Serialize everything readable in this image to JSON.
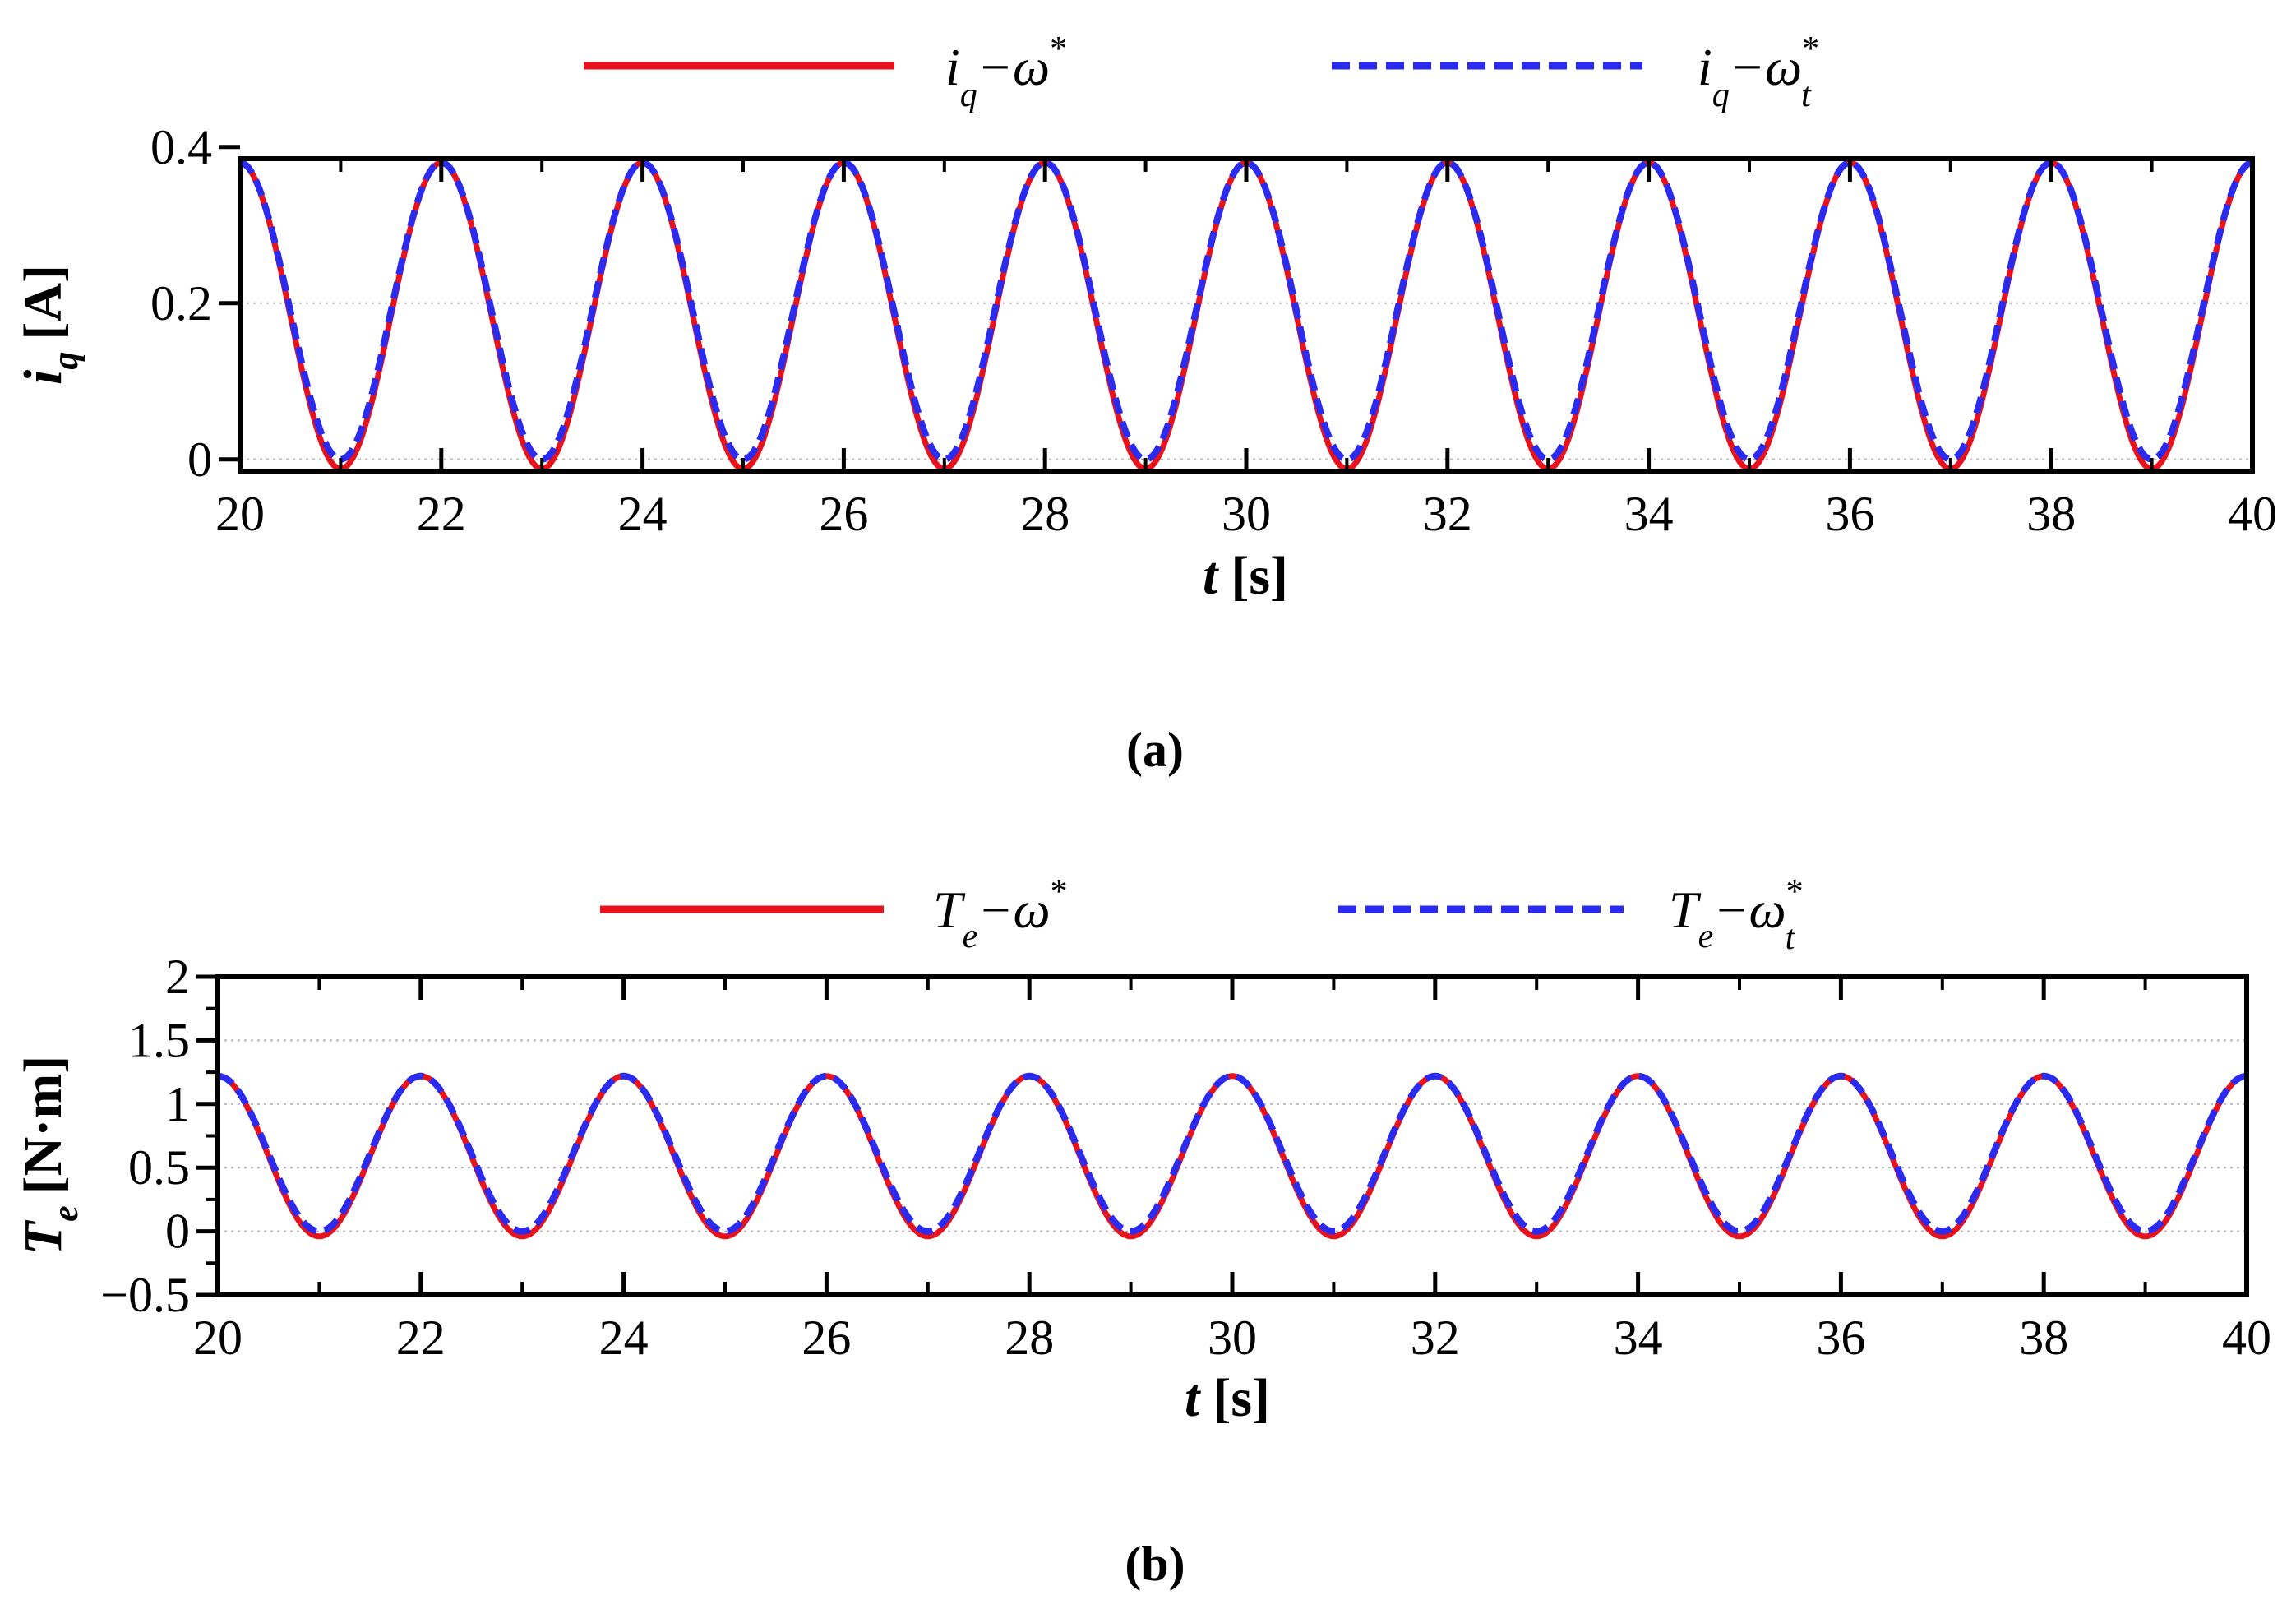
{
  "colors": {
    "red": "#e8121c",
    "blue": "#2b2bf0",
    "axis": "#000000",
    "grid": "#b4b4b4"
  },
  "chart_data": [
    {
      "type": "line",
      "panel_label": "(a)",
      "xlabel": {
        "var": "t",
        "unit": "[s]"
      },
      "ylabel": {
        "var": "i",
        "sub": "q",
        "unit": "[A]"
      },
      "xlim": [
        20,
        40
      ],
      "ylim": [
        -0.015,
        0.385
      ],
      "xticks": [
        20,
        22,
        24,
        26,
        28,
        30,
        32,
        34,
        36,
        38,
        40
      ],
      "xtick_labels": [
        "20",
        "22",
        "24",
        "26",
        "28",
        "30",
        "32",
        "34",
        "36",
        "38",
        "40"
      ],
      "yticks": [
        0,
        0.2,
        0.4
      ],
      "ytick_labels": [
        "0",
        "0.2",
        "0.4"
      ],
      "grid": true,
      "legend": [
        {
          "var": "i",
          "sub": "q",
          "sep": "−ω",
          "sup": "*",
          "sub2": ""
        },
        {
          "var": "i",
          "sub": "q",
          "sep": "−ω",
          "sup": "*",
          "sub2": "t"
        }
      ],
      "series": [
        {
          "color": "red",
          "style": "solid",
          "form": "sine",
          "period": 2,
          "peak_x": 20,
          "max": 0.38,
          "min": -0.012
        },
        {
          "color": "blue",
          "style": "dashed",
          "form": "sine",
          "period": 2,
          "peak_x": 20,
          "max": 0.38,
          "min": 0.0
        }
      ]
    },
    {
      "type": "line",
      "panel_label": "(b)",
      "xlabel": {
        "var": "t",
        "unit": "[s]"
      },
      "ylabel": {
        "var": "T",
        "sub": "e",
        "unit": "[N·m]"
      },
      "xlim": [
        20,
        40
      ],
      "ylim": [
        -0.5,
        2
      ],
      "xticks": [
        20,
        22,
        24,
        26,
        28,
        30,
        32,
        34,
        36,
        38,
        40
      ],
      "xtick_labels": [
        "20",
        "22",
        "24",
        "26",
        "28",
        "30",
        "32",
        "34",
        "36",
        "38",
        "40"
      ],
      "yticks": [
        -0.5,
        0,
        0.5,
        1,
        1.5,
        2
      ],
      "ytick_labels": [
        "−0.5",
        "0",
        "0.5",
        "1",
        "1.5",
        "2"
      ],
      "grid": true,
      "legend": [
        {
          "var": "T",
          "sub": "e",
          "sep": "−ω",
          "sup": "*",
          "sub2": ""
        },
        {
          "var": "T",
          "sub": "e",
          "sep": "−ω",
          "sup": "*",
          "sub2": "t"
        }
      ],
      "series": [
        {
          "color": "red",
          "style": "solid",
          "form": "sine",
          "period": 2,
          "peak_x": 20,
          "max": 1.22,
          "min": -0.04
        },
        {
          "color": "blue",
          "style": "dashed",
          "form": "sine",
          "period": 2,
          "peak_x": 20,
          "max": 1.22,
          "min": 0.0
        }
      ]
    }
  ]
}
